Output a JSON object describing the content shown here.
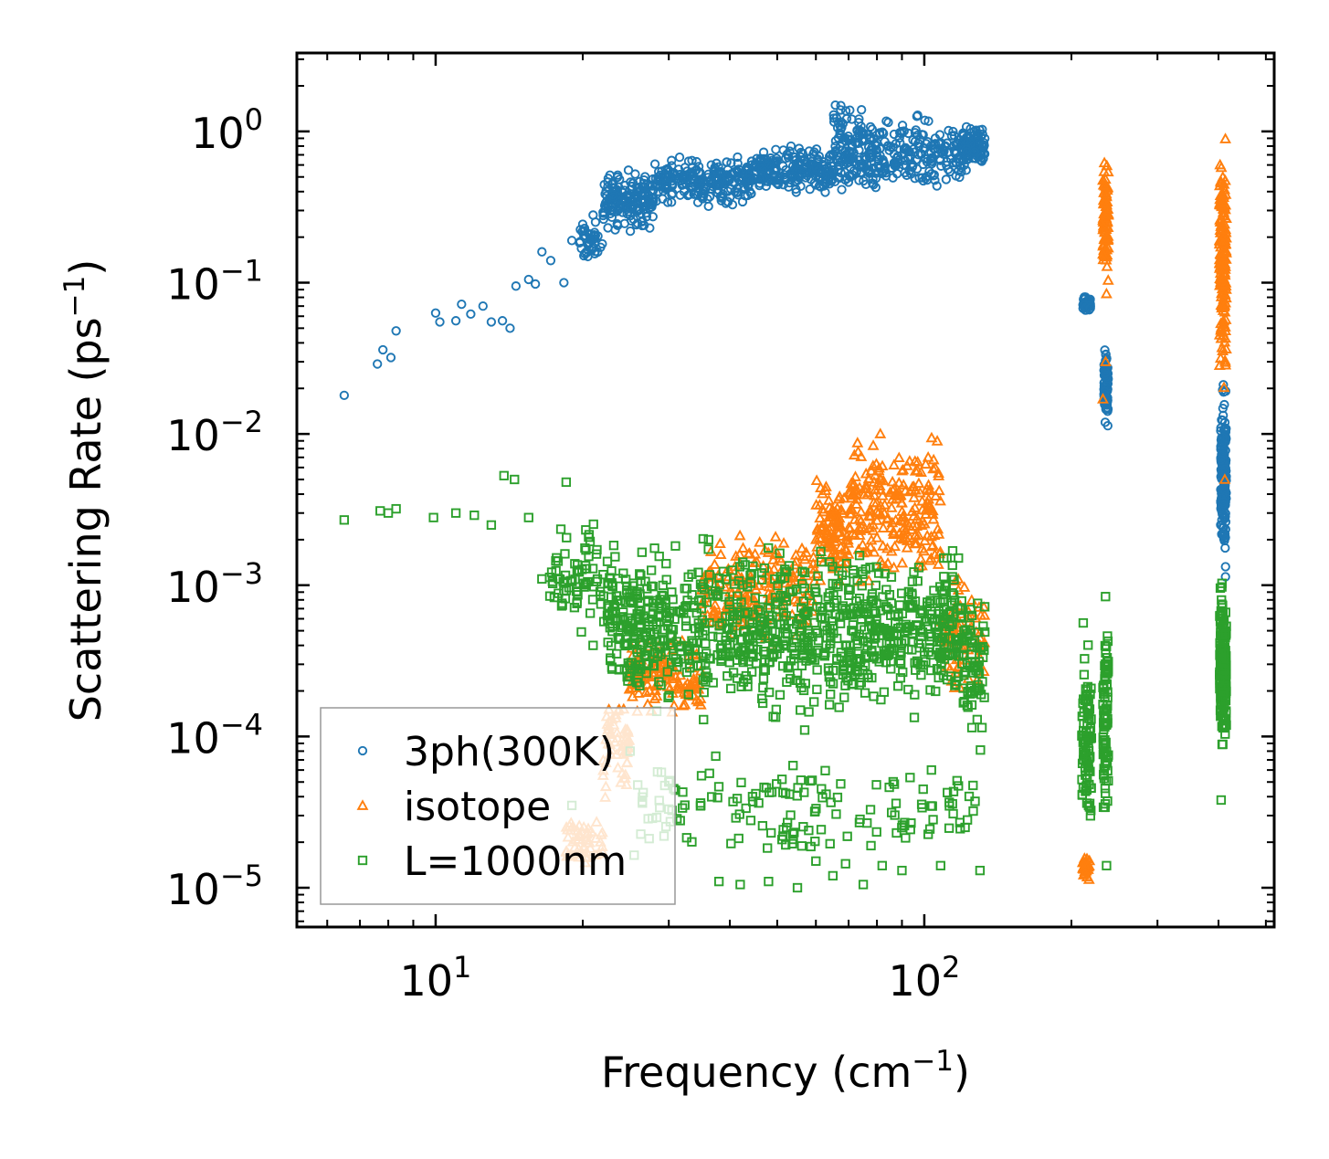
{
  "chart_data": {
    "type": "scatter",
    "title": "",
    "x_scale": "log",
    "y_scale": "log",
    "xlim": [
      5.2,
      520
    ],
    "ylim": [
      5.5e-06,
      3.3
    ],
    "xlabel": {
      "prefix": "Frequency (cm",
      "sup": "−1",
      "suffix": ")"
    },
    "ylabel": {
      "prefix": "Scattering Rate (ps",
      "sup": "−1",
      "suffix": ")"
    },
    "x_ticks": [
      {
        "value": 10,
        "base": "10",
        "exp": "1"
      },
      {
        "value": 100,
        "base": "10",
        "exp": "2"
      }
    ],
    "y_ticks": [
      {
        "value": 1e-05,
        "base": "10",
        "exp": "−5"
      },
      {
        "value": 0.0001,
        "base": "10",
        "exp": "−4"
      },
      {
        "value": 0.001,
        "base": "10",
        "exp": "−3"
      },
      {
        "value": 0.01,
        "base": "10",
        "exp": "−2"
      },
      {
        "value": 0.1,
        "base": "10",
        "exp": "−1"
      },
      {
        "value": 1,
        "base": "10",
        "exp": "0"
      }
    ],
    "grid": false,
    "legend_position": "lower-left",
    "series": [
      {
        "name": "3ph(300K)",
        "color": "#1f77b4",
        "marker": "circle",
        "points": [
          [
            6.5,
            0.018
          ],
          [
            7.6,
            0.029
          ],
          [
            7.8,
            0.036
          ],
          [
            8.1,
            0.032
          ],
          [
            8.3,
            0.048
          ],
          [
            10,
            0.063
          ],
          [
            10.2,
            0.055
          ],
          [
            11,
            0.056
          ],
          [
            11.3,
            0.072
          ],
          [
            11.8,
            0.062
          ],
          [
            12.5,
            0.07
          ],
          [
            13,
            0.055
          ],
          [
            13.7,
            0.056
          ],
          [
            14.2,
            0.05
          ],
          [
            14.6,
            0.095
          ],
          [
            15.5,
            0.105
          ],
          [
            16,
            0.098
          ],
          [
            16.5,
            0.16
          ],
          [
            17.2,
            0.14
          ],
          [
            18.3,
            0.1
          ],
          [
            19,
            0.19
          ],
          [
            20,
            0.22
          ],
          [
            21,
            0.28
          ],
          [
            22.5,
            0.43
          ]
        ],
        "bands": [
          {
            "x": [
              19.5,
              22
            ],
            "y": [
              0.12,
              0.28
            ],
            "n": 40
          },
          {
            "x": [
              22,
              28
            ],
            "y": [
              0.2,
              0.62
            ],
            "n": 170
          },
          {
            "x": [
              28,
              45
            ],
            "y": [
              0.3,
              0.75
            ],
            "n": 230
          },
          {
            "x": [
              45,
              65
            ],
            "y": [
              0.35,
              0.85
            ],
            "n": 200
          },
          {
            "x": [
              65,
              75
            ],
            "y": [
              0.28,
              1.9
            ],
            "n": 120
          },
          {
            "x": [
              75,
              122
            ],
            "y": [
              0.35,
              1.4
            ],
            "n": 230
          },
          {
            "x": [
              120,
              133
            ],
            "y": [
              0.55,
              1.2
            ],
            "n": 90
          },
          {
            "x": [
              211,
              219
            ],
            "y": [
              0.06,
              0.09
            ],
            "n": 40
          },
          {
            "x": [
              233,
              238
            ],
            "y": [
              0.009,
              0.045
            ],
            "n": 80
          },
          {
            "x": [
              404,
              415
            ],
            "y": [
              0.0009,
              0.03
            ],
            "n": 160
          }
        ]
      },
      {
        "name": "isotope",
        "color": "#ff7f0e",
        "marker": "triangle",
        "points": [
          [
            232,
            0.017
          ],
          [
            235,
            0.03
          ],
          [
            412,
            0.005
          ]
        ],
        "bands": [
          {
            "x": [
              18.5,
              22
            ],
            "y": [
              1.2e-05,
              3.5e-05
            ],
            "n": 50
          },
          {
            "x": [
              22,
              25
            ],
            "y": [
              3e-05,
              0.00025
            ],
            "n": 60
          },
          {
            "x": [
              25,
              35
            ],
            "y": [
              0.00012,
              0.0005
            ],
            "n": 120
          },
          {
            "x": [
              35,
              60
            ],
            "y": [
              0.00035,
              0.0028
            ],
            "n": 190
          },
          {
            "x": [
              60,
              70
            ],
            "y": [
              0.0008,
              0.006
            ],
            "n": 100
          },
          {
            "x": [
              70,
              108
            ],
            "y": [
              0.0008,
              0.012
            ],
            "n": 230
          },
          {
            "x": [
              108,
              133
            ],
            "y": [
              0.00015,
              0.0015
            ],
            "n": 70
          },
          {
            "x": [
              211,
              218
            ],
            "y": [
              1e-05,
              1.8e-05
            ],
            "n": 30
          },
          {
            "x": [
              232,
              238
            ],
            "y": [
              0.07,
              1.0
            ],
            "n": 90
          },
          {
            "x": [
              402,
              415
            ],
            "y": [
              0.012,
              1.4
            ],
            "n": 170
          }
        ]
      },
      {
        "name": "L=1000nm",
        "color": "#2ca02c",
        "marker": "square",
        "points": [
          [
            6.5,
            0.0027
          ],
          [
            7.7,
            0.0031
          ],
          [
            8,
            0.003
          ],
          [
            8.3,
            0.0032
          ],
          [
            9.9,
            0.0028
          ],
          [
            11,
            0.003
          ],
          [
            12,
            0.0029
          ],
          [
            13,
            0.0025
          ],
          [
            13.8,
            0.0053
          ],
          [
            14.5,
            0.005
          ],
          [
            15.5,
            0.0028
          ],
          [
            16.5,
            0.0011
          ],
          [
            18.5,
            0.0048
          ],
          [
            19.5,
            0.0009
          ],
          [
            21,
            0.0004
          ],
          [
            19,
            3.5e-05
          ],
          [
            25,
            8e-05
          ],
          [
            30,
            5e-05
          ],
          [
            35,
            5.5e-05
          ],
          [
            38,
            1.1e-05
          ],
          [
            42,
            1.05e-05
          ],
          [
            48,
            1.1e-05
          ],
          [
            55,
            1e-05
          ],
          [
            60,
            1.5e-05
          ],
          [
            65,
            1.2e-05
          ],
          [
            75,
            1.05e-05
          ],
          [
            82,
            1.4e-05
          ],
          [
            90,
            1.3e-05
          ],
          [
            108,
            1.4e-05
          ],
          [
            130,
            1.3e-05
          ],
          [
            236,
            1.4e-05
          ],
          [
            405,
            3.8e-05
          ]
        ],
        "bands": [
          {
            "x": [
              17,
              24
            ],
            "y": [
              0.0004,
              0.0035
            ],
            "n": 80
          },
          {
            "x": [
              22.5,
              35
            ],
            "y": [
              0.00012,
              0.0022
            ],
            "n": 260
          },
          {
            "x": [
              35,
              70
            ],
            "y": [
              0.0001,
              0.0025
            ],
            "n": 380
          },
          {
            "x": [
              70,
              120
            ],
            "y": [
              0.00012,
              0.002
            ],
            "n": 340
          },
          {
            "x": [
              25,
              130
            ],
            "y": [
              1.2e-05,
              0.0001
            ],
            "n": 150
          },
          {
            "x": [
              120,
              133
            ],
            "y": [
              5e-05,
              0.0015
            ],
            "n": 70
          },
          {
            "x": [
              210,
              220
            ],
            "y": [
              1.6e-05,
              0.0006
            ],
            "n": 90
          },
          {
            "x": [
              232,
              238
            ],
            "y": [
              2e-05,
              0.0009
            ],
            "n": 90
          },
          {
            "x": [
              402,
              415
            ],
            "y": [
              6e-05,
              0.0016
            ],
            "n": 160
          }
        ]
      }
    ]
  }
}
